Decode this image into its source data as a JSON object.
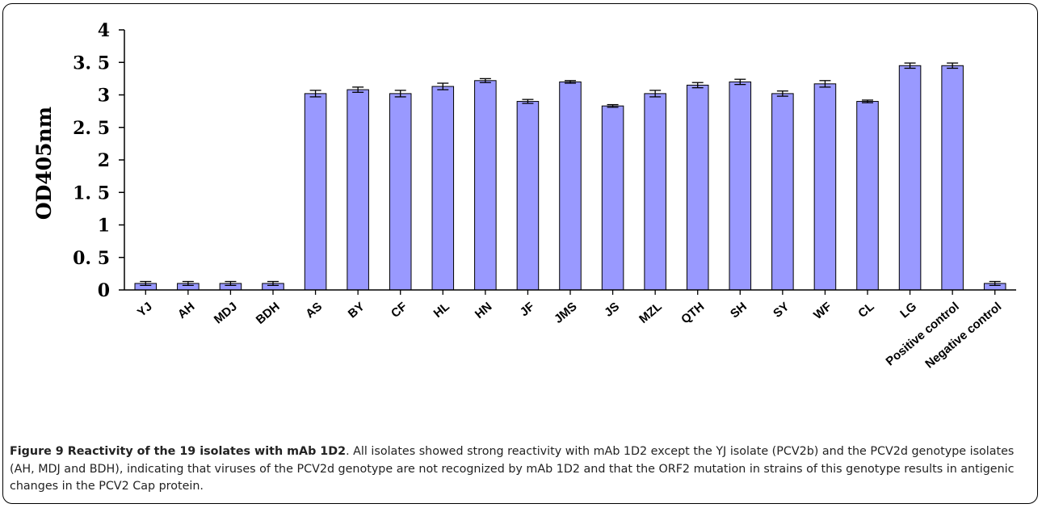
{
  "chart_data": {
    "type": "bar",
    "title": "",
    "xlabel": "",
    "ylabel": "OD405nm",
    "ylim": [
      0,
      4
    ],
    "yticks": [
      "0",
      "0. 5",
      "1",
      "1. 5",
      "2",
      "2. 5",
      "3",
      "3. 5",
      "4"
    ],
    "grid": false,
    "legend": "none",
    "categories": [
      "YJ",
      "AH",
      "MDJ",
      "BDH",
      "AS",
      "BY",
      "CF",
      "HL",
      "HN",
      "JF",
      "JMS",
      "JS",
      "MZL",
      "QTH",
      "SH",
      "SY",
      "WF",
      "CL",
      "LG",
      "Positive control",
      "Negative control"
    ],
    "values": [
      0.1,
      0.1,
      0.1,
      0.1,
      3.02,
      3.08,
      3.02,
      3.13,
      3.22,
      2.9,
      3.2,
      2.83,
      3.02,
      3.15,
      3.2,
      3.02,
      3.17,
      2.9,
      3.45,
      3.45,
      0.1
    ],
    "errors": [
      0.03,
      0.03,
      0.03,
      0.03,
      0.05,
      0.04,
      0.05,
      0.05,
      0.03,
      0.03,
      0.02,
      0.02,
      0.05,
      0.04,
      0.04,
      0.04,
      0.05,
      0.02,
      0.04,
      0.04,
      0.03
    ],
    "colors": {
      "bar_fill": "#9999ff",
      "bar_stroke": "#000000"
    }
  },
  "caption": {
    "label": "Figure 9 Reactivity of the 19 isolates with mAb 1D2",
    "text": ". All isolates showed strong reactivity with mAb 1D2 except the YJ isolate (PCV2b) and the PCV2d genotype isolates (AH, MDJ and BDH), indicating that viruses of the PCV2d genotype are not recognized by mAb 1D2 and that the ORF2 mutation in strains of this genotype results in antigenic changes in the PCV2 Cap protein."
  }
}
